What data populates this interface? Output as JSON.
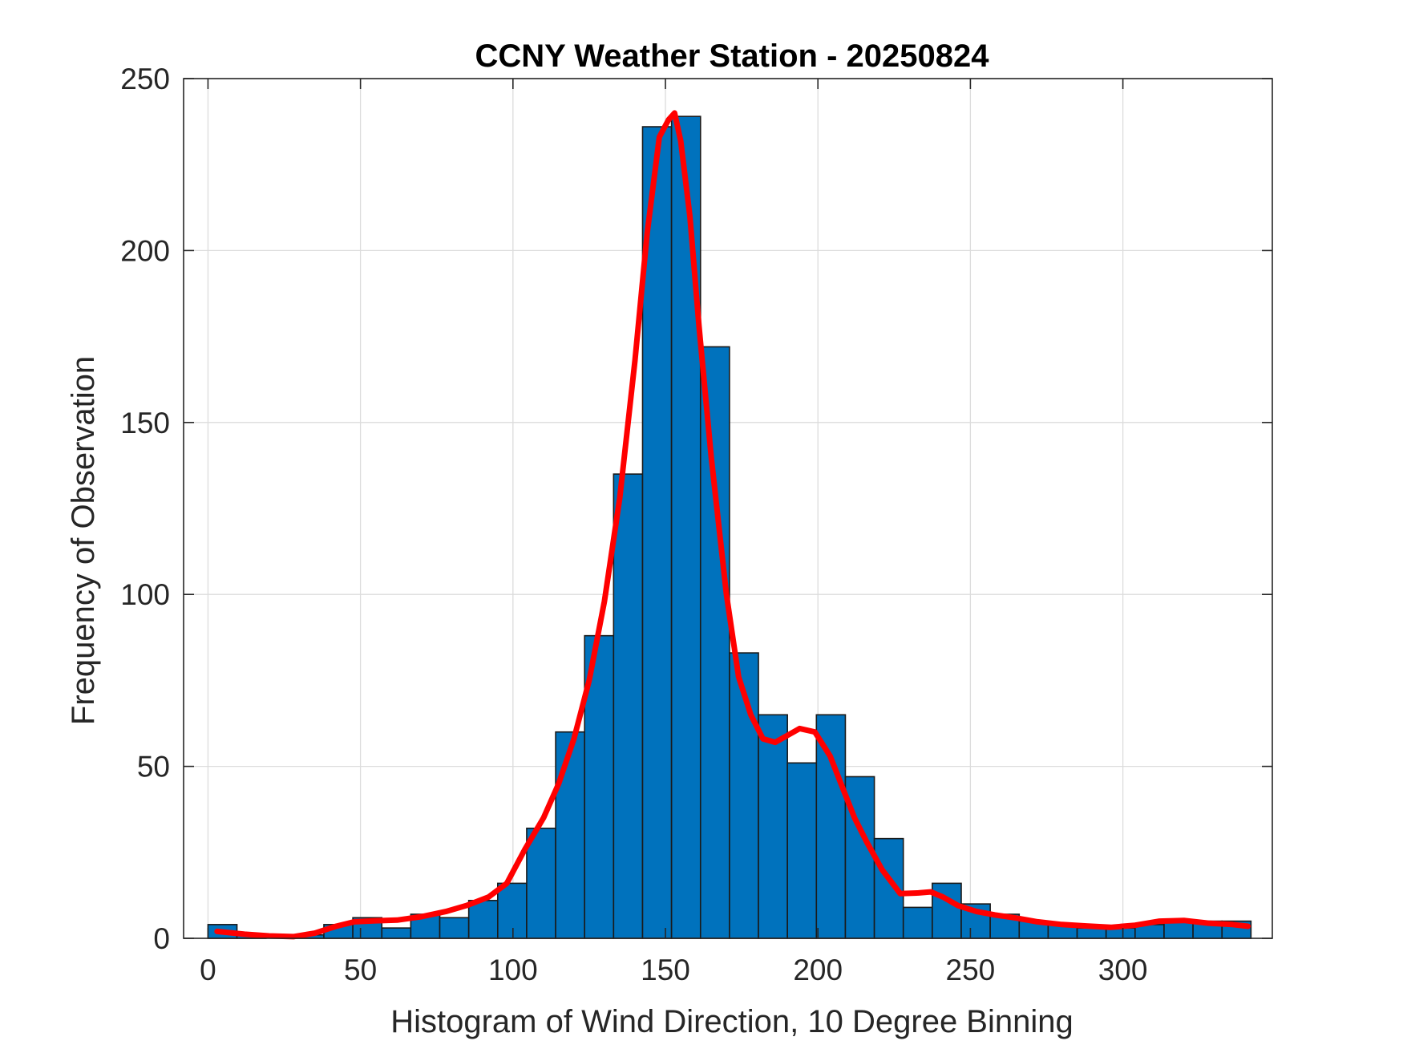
{
  "chart_data": {
    "type": "bar",
    "title": "CCNY Weather Station - 20250824",
    "xlabel": "Histogram of Wind Direction, 10 Degree Binning",
    "ylabel": "Frequency of Observation",
    "xlim": [
      -8,
      349
    ],
    "ylim": [
      0,
      250
    ],
    "xticks": [
      0,
      50,
      100,
      150,
      200,
      250,
      300
    ],
    "yticks": [
      0,
      50,
      100,
      150,
      200,
      250
    ],
    "grid": true,
    "bin_width": 9.5,
    "bin_edges": [
      0,
      9.5,
      19,
      28.5,
      38,
      47.5,
      57,
      66.5,
      76,
      85.5,
      95,
      104.5,
      114,
      123.5,
      133,
      142.5,
      152,
      161.5,
      171,
      180.5,
      190,
      199.5,
      209,
      218.5,
      228,
      237.5,
      247,
      256.5,
      266,
      275.5,
      285,
      294.5,
      304,
      313.5,
      323,
      332.5,
      342
    ],
    "values": [
      4,
      1,
      0,
      1,
      4,
      6,
      3,
      7,
      6,
      11,
      16,
      32,
      60,
      88,
      135,
      236,
      239,
      172,
      83,
      65,
      51,
      65,
      47,
      29,
      9,
      16,
      10,
      7,
      5,
      4,
      3,
      3,
      4,
      5,
      5,
      5
    ],
    "bar_color": "#0072BD",
    "curve": {
      "name": "smoothed fit",
      "color": "#FF0000",
      "x": [
        3,
        12,
        20,
        28,
        35,
        42,
        48,
        55,
        62,
        70,
        78,
        85,
        92,
        98,
        104,
        110,
        115,
        120,
        125,
        130,
        135,
        140,
        144,
        148,
        151,
        153,
        155,
        158,
        161,
        165,
        170,
        174,
        178,
        182,
        186,
        190,
        194,
        199,
        204,
        208,
        212,
        216,
        221,
        227,
        233,
        237,
        241,
        246,
        252,
        258,
        265,
        272,
        280,
        288,
        296,
        304,
        312,
        320,
        328,
        336,
        341
      ],
      "y": [
        2,
        1.2,
        0.7,
        0.5,
        1.5,
        3.5,
        4.8,
        5.1,
        5.3,
        6.3,
        7.8,
        9.6,
        12,
        16,
        26,
        35,
        45,
        58,
        75,
        98,
        128,
        168,
        205,
        233,
        238,
        240,
        232,
        210,
        178,
        140,
        100,
        76,
        65,
        58,
        57,
        59,
        61,
        60,
        53,
        44,
        35,
        28,
        20,
        13,
        13.2,
        13.5,
        12,
        9.5,
        7.8,
        6.8,
        5.9,
        4.8,
        4,
        3.6,
        3.2,
        3.8,
        5,
        5.2,
        4.4,
        4,
        3.5
      ]
    }
  }
}
